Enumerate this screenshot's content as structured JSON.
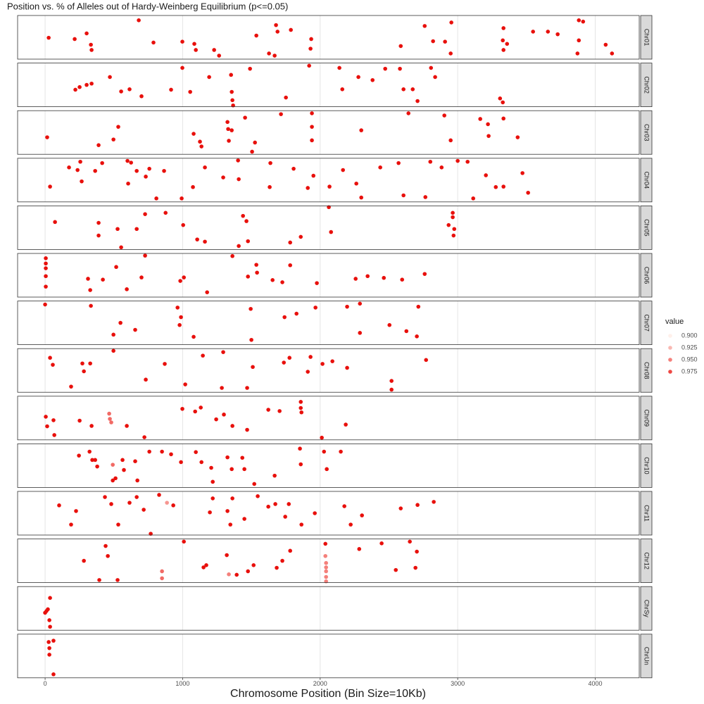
{
  "chart_data": {
    "type": "faceted-scatter",
    "title": "Position vs. % of Alleles out of Hardy-Weinberg Equilibrium (p<=0.05)",
    "x_label": "Chromosome Position (Bin Size=10Kb)",
    "xlim": [
      -200,
      4320
    ],
    "xticks": [
      0,
      1000,
      2000,
      3000,
      4000
    ],
    "ylim": [
      0,
      1
    ],
    "grid": true,
    "color_scale": {
      "low": "#fff0ea",
      "high": "#e8100c",
      "limits": [
        0.9,
        1
      ]
    },
    "legend": {
      "title": "value",
      "breaks": [
        {
          "value": 0.9,
          "label": "0.900"
        },
        {
          "value": 0.925,
          "label": "0.925"
        },
        {
          "value": 0.95,
          "label": "0.950"
        },
        {
          "value": 0.975,
          "label": "0.975"
        }
      ]
    },
    "facets": [
      {
        "name": "Chr01",
        "x": [
          26,
          215,
          302,
          333,
          338,
          681,
          788,
          998,
          1085,
          1096,
          1229,
          1265,
          1536,
          1628,
          1669,
          1679,
          1690,
          1787,
          1930,
          1935,
          2586,
          2760,
          2821,
          2908,
          2949,
          2954,
          3333,
          3328,
          3359,
          3333,
          3548,
          3656,
          3727,
          3871,
          3881,
          3912,
          3881,
          4076,
          4122
        ],
        "y": [
          0.49,
          0.46,
          0.59,
          0.33,
          0.21,
          0.89,
          0.38,
          0.4,
          0.35,
          0.21,
          0.21,
          0.08,
          0.54,
          0.13,
          0.08,
          0.78,
          0.63,
          0.67,
          0.24,
          0.46,
          0.3,
          0.76,
          0.41,
          0.4,
          0.13,
          0.84,
          0.71,
          0.43,
          0.35,
          0.21,
          0.63,
          0.63,
          0.57,
          0.13,
          0.89,
          0.86,
          0.43,
          0.33,
          0.13
        ],
        "values": [
          1,
          1,
          1,
          1,
          1,
          1,
          1,
          1,
          1,
          1,
          1,
          1,
          1,
          1,
          1,
          1,
          1,
          1,
          1,
          1,
          1,
          1,
          1,
          1,
          1,
          1,
          1,
          1,
          1,
          1,
          1,
          1,
          1,
          1,
          1,
          1,
          1,
          1,
          1
        ]
      },
      {
        "name": "Chr02",
        "x": [
          220,
          251,
          302,
          338,
          471,
          553,
          614,
          701,
          916,
          998,
          1055,
          1193,
          1352,
          1357,
          1362,
          1367,
          1490,
          1751,
          1920,
          2140,
          2161,
          2278,
          2381,
          2473,
          2580,
          2606,
          2673,
          2708,
          2806,
          2836,
          3308,
          3328
        ],
        "y": [
          0.39,
          0.45,
          0.5,
          0.53,
          0.68,
          0.35,
          0.4,
          0.24,
          0.39,
          0.89,
          0.34,
          0.68,
          0.73,
          0.34,
          0.15,
          0.03,
          0.87,
          0.21,
          0.94,
          0.89,
          0.4,
          0.68,
          0.61,
          0.87,
          0.87,
          0.4,
          0.4,
          0.13,
          0.89,
          0.68,
          0.19,
          0.1
        ],
        "values": [
          1,
          1,
          1,
          1,
          1,
          1,
          1,
          1,
          1,
          1,
          1,
          1,
          1,
          1,
          1,
          1,
          1,
          1,
          1,
          1,
          1,
          1,
          1,
          1,
          1,
          1,
          1,
          1,
          1,
          1,
          1,
          1
        ]
      },
      {
        "name": "Chr03",
        "x": [
          15,
          389,
          497,
          532,
          1080,
          1126,
          1137,
          1326,
          1331,
          1336,
          1357,
          1454,
          1505,
          1526,
          1715,
          1940,
          1940,
          1940,
          2299,
          2642,
          2903,
          2949,
          3164,
          3220,
          3225,
          3333,
          3436
        ],
        "y": [
          0.39,
          0.21,
          0.34,
          0.63,
          0.47,
          0.29,
          0.18,
          0.74,
          0.58,
          0.31,
          0.55,
          0.84,
          0.06,
          0.27,
          0.92,
          0.94,
          0.63,
          0.32,
          0.55,
          0.94,
          0.89,
          0.32,
          0.81,
          0.69,
          0.42,
          0.82,
          0.39
        ],
        "values": [
          1,
          1,
          1,
          1,
          1,
          1,
          1,
          1,
          1,
          1,
          1,
          1,
          1,
          1,
          1,
          1,
          1,
          1,
          1,
          1,
          1,
          1,
          1,
          1,
          1,
          1,
          1
        ]
      },
      {
        "name": "Chr04",
        "x": [
          36,
          174,
          236,
          256,
          266,
          364,
          415,
          599,
          604,
          625,
          666,
          732,
          758,
          809,
          865,
          993,
          1075,
          1162,
          1295,
          1403,
          1408,
          1633,
          1638,
          1807,
          1910,
          1951,
          2068,
          2166,
          2263,
          2299,
          2437,
          2570,
          2606,
          2765,
          2801,
          2883,
          3000,
          3072,
          3113,
          3205,
          3277,
          3333,
          3471,
          3512
        ],
        "y": [
          0.35,
          0.79,
          0.73,
          0.92,
          0.47,
          0.71,
          0.89,
          0.94,
          0.42,
          0.9,
          0.71,
          0.58,
          0.76,
          0.08,
          0.71,
          0.08,
          0.34,
          0.79,
          0.56,
          0.95,
          0.52,
          0.34,
          0.89,
          0.76,
          0.32,
          0.6,
          0.35,
          0.73,
          0.42,
          0.1,
          0.79,
          0.89,
          0.15,
          0.11,
          0.92,
          0.79,
          0.94,
          0.92,
          0.08,
          0.61,
          0.34,
          0.35,
          0.66,
          0.21
        ],
        "values": [
          1,
          1,
          1,
          1,
          1,
          1,
          1,
          1,
          1,
          1,
          1,
          1,
          1,
          1,
          1,
          1,
          1,
          1,
          1,
          1,
          1,
          1,
          1,
          1,
          1,
          1,
          1,
          1,
          1,
          1,
          1,
          1,
          1,
          1,
          1,
          1,
          1,
          1,
          1,
          1,
          1,
          1,
          1,
          1
        ]
      },
      {
        "name": "Chr05",
        "x": [
          72,
          389,
          389,
          527,
          553,
          666,
          727,
          876,
          1004,
          1106,
          1162,
          1408,
          1439,
          1464,
          1475,
          1782,
          1859,
          2063,
          2079,
          2934,
          2964,
          2964,
          2975,
          2970
        ],
        "y": [
          0.63,
          0.61,
          0.32,
          0.47,
          0.05,
          0.47,
          0.81,
          0.84,
          0.56,
          0.23,
          0.18,
          0.08,
          0.77,
          0.65,
          0.19,
          0.16,
          0.29,
          0.97,
          0.4,
          0.56,
          0.84,
          0.74,
          0.47,
          0.32
        ],
        "values": [
          1,
          1,
          1,
          1,
          1,
          1,
          1,
          1,
          1,
          1,
          1,
          1,
          1,
          1,
          1,
          1,
          1,
          1,
          1,
          1,
          1,
          1,
          1,
          1
        ]
      },
      {
        "name": "Chr06",
        "x": [
          5,
          5,
          5,
          5,
          5,
          312,
          328,
          420,
          517,
          594,
          701,
          727,
          983,
          1009,
          1178,
          1362,
          1475,
          1536,
          1541,
          1654,
          1725,
          1782,
          1976,
          2258,
          2345,
          2463,
          2596,
          2760
        ],
        "y": [
          0.89,
          0.77,
          0.66,
          0.48,
          0.24,
          0.42,
          0.16,
          0.4,
          0.69,
          0.18,
          0.45,
          0.95,
          0.37,
          0.45,
          0.11,
          0.94,
          0.47,
          0.74,
          0.56,
          0.39,
          0.34,
          0.73,
          0.32,
          0.42,
          0.48,
          0.44,
          0.4,
          0.53
        ],
        "values": [
          1,
          1,
          1,
          1,
          1,
          1,
          1,
          1,
          1,
          1,
          1,
          1,
          1,
          1,
          1,
          1,
          1,
          1,
          1,
          1,
          1,
          1,
          1,
          1,
          1,
          1,
          1,
          1
        ]
      },
      {
        "name": "Chr07",
        "x": [
          0,
          333,
          497,
          548,
          655,
          963,
          978,
          988,
          1080,
          1495,
          1500,
          1741,
          1828,
          1966,
          2196,
          2289,
          2289,
          2504,
          2627,
          2703,
          2714
        ],
        "y": [
          0.92,
          0.89,
          0.23,
          0.5,
          0.34,
          0.85,
          0.45,
          0.63,
          0.18,
          0.82,
          0.11,
          0.63,
          0.71,
          0.85,
          0.87,
          0.94,
          0.27,
          0.45,
          0.31,
          0.19,
          0.87
        ],
        "values": [
          1,
          1,
          1,
          1,
          1,
          1,
          1,
          1,
          1,
          1,
          1,
          1,
          1,
          1,
          1,
          1,
          1,
          1,
          1,
          1,
          1
        ]
      },
      {
        "name": "Chr08",
        "x": [
          36,
          56,
          189,
          271,
          282,
          328,
          497,
          732,
          870,
          1019,
          1147,
          1285,
          1295,
          1469,
          1510,
          1736,
          1777,
          1930,
          1910,
          2017,
          2089,
          2196,
          2519,
          2519,
          2770
        ],
        "y": [
          0.79,
          0.63,
          0.13,
          0.66,
          0.48,
          0.66,
          0.95,
          0.29,
          0.65,
          0.18,
          0.84,
          0.1,
          0.92,
          0.1,
          0.58,
          0.68,
          0.79,
          0.81,
          0.47,
          0.65,
          0.71,
          0.56,
          0.26,
          0.06,
          0.74
        ],
        "values": [
          1,
          1,
          1,
          1,
          1,
          1,
          1,
          1,
          1,
          1,
          1,
          1,
          1,
          1,
          1,
          1,
          1,
          1,
          1,
          1,
          1,
          1,
          1,
          1,
          1
        ]
      },
      {
        "name": "Chr09",
        "x": [
          5,
          15,
          67,
          61,
          251,
          338,
          466,
          471,
          481,
          594,
          722,
          998,
          1091,
          1132,
          1244,
          1300,
          1362,
          1469,
          1623,
          1705,
          1859,
          1864,
          1859,
          2012,
          2186
        ],
        "y": [
          0.53,
          0.31,
          0.11,
          0.45,
          0.44,
          0.32,
          0.6,
          0.48,
          0.4,
          0.32,
          0.06,
          0.71,
          0.65,
          0.74,
          0.47,
          0.58,
          0.32,
          0.23,
          0.69,
          0.66,
          0.73,
          0.63,
          0.87,
          0.05,
          0.35
        ],
        "values": [
          1,
          1,
          1,
          1,
          1,
          1,
          0.96,
          0.96,
          0.96,
          1,
          1,
          1,
          1,
          1,
          1,
          1,
          1,
          1,
          1,
          1,
          1,
          1,
          1,
          1,
          1
        ]
      },
      {
        "name": "Chr10",
        "x": [
          246,
          323,
          343,
          364,
          379,
          492,
          492,
          512,
          563,
          573,
          655,
          671,
          758,
          850,
          916,
          988,
          1096,
          1137,
          1208,
          1219,
          1326,
          1357,
          1434,
          1449,
          1521,
          1669,
          1853,
          1859,
          2028,
          2048,
          2150
        ],
        "y": [
          0.73,
          0.82,
          0.63,
          0.63,
          0.48,
          0.52,
          0.16,
          0.21,
          0.63,
          0.4,
          0.6,
          0.16,
          0.82,
          0.82,
          0.76,
          0.58,
          0.81,
          0.58,
          0.45,
          0.13,
          0.69,
          0.42,
          0.68,
          0.42,
          0.08,
          0.27,
          0.89,
          0.53,
          0.82,
          0.42,
          0.82
        ],
        "values": [
          1,
          1,
          1,
          1,
          1,
          0.96,
          1,
          1,
          1,
          1,
          1,
          1,
          1,
          1,
          1,
          1,
          1,
          1,
          1,
          1,
          1,
          1,
          1,
          1,
          1,
          1,
          1,
          1,
          1,
          1,
          1
        ]
      },
      {
        "name": "Chr11",
        "x": [
          102,
          189,
          225,
          435,
          481,
          532,
          614,
          666,
          717,
          768,
          829,
          886,
          932,
          1198,
          1219,
          1362,
          1326,
          1347,
          1449,
          1546,
          1623,
          1674,
          1746,
          1772,
          1864,
          1961,
          2176,
          2222,
          2304,
          2586,
          2708,
          2826
        ],
        "y": [
          0.68,
          0.24,
          0.55,
          0.87,
          0.71,
          0.24,
          0.74,
          0.87,
          0.58,
          0.03,
          0.92,
          0.74,
          0.68,
          0.52,
          0.84,
          0.84,
          0.55,
          0.24,
          0.37,
          0.89,
          0.65,
          0.71,
          0.42,
          0.71,
          0.24,
          0.5,
          0.66,
          0.24,
          0.45,
          0.61,
          0.69,
          0.76
        ],
        "values": [
          1,
          1,
          1,
          1,
          1,
          1,
          1,
          1,
          1,
          1,
          1,
          0.94,
          1,
          1,
          1,
          1,
          1,
          1,
          1,
          1,
          1,
          1,
          1,
          1,
          1,
          1,
          1,
          1,
          1,
          1,
          1,
          1
        ]
      },
      {
        "name": "Chr12",
        "x": [
          282,
          394,
          440,
          456,
          527,
          850,
          850,
          1009,
          1152,
          1172,
          1321,
          1336,
          1393,
          1475,
          1516,
          1684,
          1725,
          1782,
          2038,
          2038,
          2043,
          2043,
          2043,
          2043,
          2043,
          2284,
          2447,
          2550,
          2652,
          2693,
          2703
        ],
        "y": [
          0.5,
          0.06,
          0.84,
          0.61,
          0.06,
          0.26,
          0.1,
          0.94,
          0.35,
          0.4,
          0.63,
          0.19,
          0.18,
          0.26,
          0.4,
          0.34,
          0.5,
          0.73,
          0.89,
          0.61,
          0.45,
          0.35,
          0.26,
          0.13,
          0.03,
          0.77,
          0.9,
          0.29,
          0.94,
          0.34,
          0.71
        ],
        "values": [
          1,
          1,
          1,
          1,
          1,
          0.96,
          0.96,
          1,
          1,
          1,
          1,
          0.95,
          1,
          1,
          1,
          1,
          1,
          1,
          1,
          0.95,
          0.95,
          0.95,
          0.95,
          0.95,
          0.95,
          1,
          1,
          1,
          1,
          1,
          1
        ]
      },
      {
        "name": "ChrSy",
        "x": [
          36,
          20,
          10,
          0,
          31,
          36
        ],
        "y": [
          0.74,
          0.48,
          0.44,
          0.4,
          0.23,
          0.08
        ],
        "values": [
          1,
          1,
          1,
          1,
          1,
          1
        ]
      },
      {
        "name": "ChrUn",
        "x": [
          26,
          61,
          31,
          31,
          61
        ],
        "y": [
          0.82,
          0.85,
          0.68,
          0.53,
          0.08
        ],
        "values": [
          1,
          1,
          1,
          1,
          1
        ]
      }
    ]
  }
}
